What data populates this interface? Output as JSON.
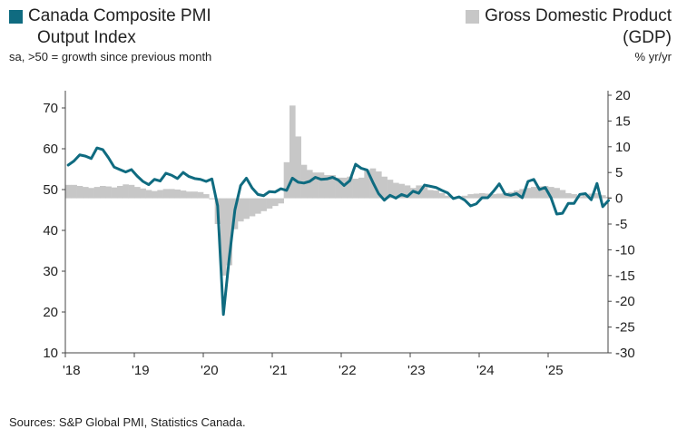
{
  "chart_data": {
    "type": "line+bar",
    "title_left": [
      "Canada Composite PMI",
      "Output Index"
    ],
    "subtitle_left": "sa, >50 = growth since previous month",
    "title_right": [
      "Gross Domestic Product",
      "(GDP)"
    ],
    "subtitle_right": "% yr/yr",
    "source": "Sources: S&P Global PMI, Statistics Canada.",
    "colors": {
      "pmi": "#0f6b80",
      "gdp": "#c7c7c7",
      "axis": "#444444"
    },
    "y_left": {
      "min": 10,
      "max": 72,
      "ticks": [
        10,
        20,
        30,
        40,
        50,
        60,
        70
      ]
    },
    "y_right": {
      "min": -30,
      "max": 20,
      "ticks": [
        -30,
        -25,
        -20,
        -15,
        -10,
        -5,
        0,
        5,
        10,
        15,
        20
      ]
    },
    "x": {
      "start_year": 2018,
      "end": 2025.95,
      "tick_labels": [
        "'18",
        "'19",
        "'20",
        "'21",
        "'22",
        "'23",
        "'24",
        "'25"
      ]
    },
    "series": [
      {
        "name": "Canada Composite PMI Output Index",
        "kind": "line",
        "axis": "left",
        "start": "2018-01",
        "frequency": "monthly",
        "values": [
          56.0,
          57.0,
          58.5,
          58.2,
          57.6,
          60.2,
          59.8,
          57.8,
          55.5,
          54.9,
          54.3,
          54.9,
          53.3,
          52.0,
          51.2,
          52.5,
          52.1,
          54.0,
          53.5,
          52.7,
          54.2,
          53.2,
          52.7,
          52.5,
          52.0,
          52.6,
          46.0,
          19.4,
          33.0,
          45.0,
          51.0,
          52.8,
          50.4,
          48.8,
          48.5,
          49.5,
          49.4,
          50.2,
          49.8,
          52.8,
          51.8,
          51.6,
          52.0,
          53.0,
          52.5,
          52.6,
          53.0,
          52.3,
          51.0,
          52.2,
          56.2,
          55.2,
          54.8,
          51.8,
          49.0,
          47.4,
          48.6,
          47.9,
          48.8,
          48.3,
          49.6,
          49.1,
          51.1,
          50.8,
          50.5,
          49.8,
          49.2,
          47.8,
          48.2,
          47.4,
          46.0,
          46.5,
          48.0,
          48.0,
          49.6,
          51.4,
          48.9,
          48.6,
          49.0,
          48.0,
          52.0,
          52.5,
          50.0,
          50.5,
          48.0,
          44.0,
          44.2,
          46.6,
          46.6,
          48.8,
          49.0,
          47.5,
          51.5,
          45.8,
          47.3
        ]
      },
      {
        "name": "Gross Domestic Product (GDP)",
        "kind": "bar",
        "axis": "right",
        "start": "2018-01",
        "frequency": "monthly",
        "values": [
          2.6,
          2.6,
          2.4,
          2.2,
          2.0,
          2.2,
          2.4,
          2.3,
          2.1,
          2.4,
          2.7,
          2.6,
          2.2,
          1.9,
          1.6,
          1.4,
          1.6,
          1.8,
          1.8,
          1.7,
          1.5,
          1.3,
          1.3,
          1.2,
          0.8,
          -0.2,
          -5.0,
          -15.0,
          -13.0,
          -6.0,
          -4.5,
          -4.0,
          -3.5,
          -3.0,
          -2.5,
          -2.0,
          -1.5,
          -1.0,
          7.0,
          18.0,
          12.0,
          6.5,
          5.5,
          5.0,
          5.0,
          4.5,
          4.5,
          4.0,
          4.0,
          4.2,
          3.8,
          4.0,
          5.5,
          5.8,
          5.2,
          4.2,
          3.6,
          3.0,
          2.8,
          2.5,
          2.0,
          2.5,
          2.2,
          1.6,
          1.5,
          1.0,
          0.5,
          0.3,
          0.4,
          0.5,
          0.8,
          0.9,
          1.0,
          0.9,
          0.8,
          0.9,
          1.0,
          1.2,
          1.5,
          1.8,
          2.0,
          2.2,
          2.3,
          2.4,
          2.2,
          2.0,
          1.6,
          1.0,
          0.8,
          0.4,
          0.6,
          0.9,
          1.0,
          0.6,
          0.3
        ]
      }
    ]
  }
}
